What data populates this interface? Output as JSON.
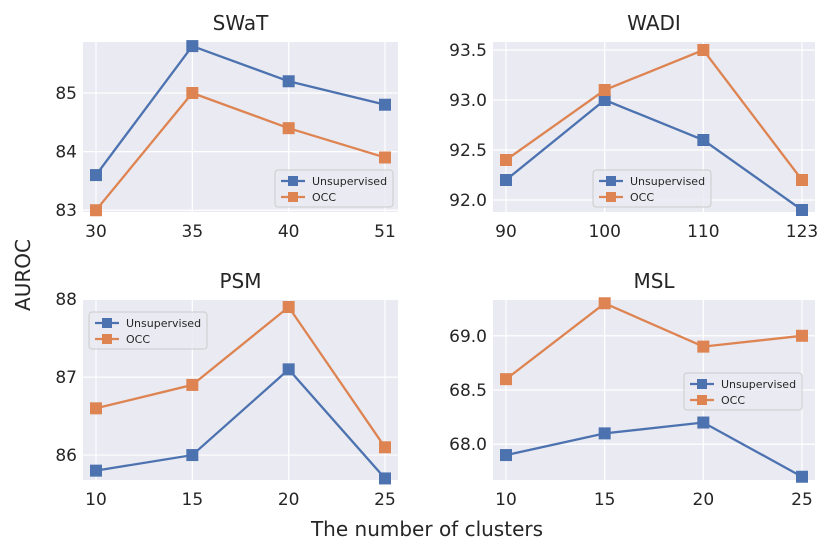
{
  "figure": {
    "ylabel": "AUROC",
    "xlabel": "The number of clusters",
    "colors": {
      "unsupervised": "#4c72b0",
      "occ": "#dd8452",
      "panel_bg": "#eaeaf2",
      "grid": "#ffffff"
    }
  },
  "chart_data": [
    {
      "type": "line",
      "title": "SWaT",
      "categories": [
        "30",
        "35",
        "40",
        "51"
      ],
      "series": [
        {
          "name": "Unsupervised",
          "values": [
            83.6,
            85.8,
            85.2,
            84.8
          ]
        },
        {
          "name": "OCC",
          "values": [
            83.0,
            85.0,
            84.4,
            83.9
          ]
        }
      ],
      "ylim": [
        82.97,
        85.87
      ],
      "yticks": [
        "83",
        "84",
        "85"
      ],
      "legend": "lower-right"
    },
    {
      "type": "line",
      "title": "WADI",
      "categories": [
        "90",
        "100",
        "110",
        "123"
      ],
      "series": [
        {
          "name": "Unsupervised",
          "values": [
            92.2,
            93.0,
            92.6,
            91.9
          ]
        },
        {
          "name": "OCC",
          "values": [
            92.4,
            93.1,
            93.5,
            92.2
          ]
        }
      ],
      "ylim": [
        91.88,
        93.58
      ],
      "yticks": [
        "92.0",
        "92.5",
        "93.0",
        "93.5"
      ],
      "legend": "lower-right"
    },
    {
      "type": "line",
      "title": "PSM",
      "categories": [
        "10",
        "15",
        "20",
        "25"
      ],
      "series": [
        {
          "name": "Unsupervised",
          "values": [
            85.8,
            86.0,
            87.1,
            85.7
          ]
        },
        {
          "name": "OCC",
          "values": [
            86.6,
            86.9,
            87.9,
            86.1
          ]
        }
      ],
      "ylim": [
        85.68,
        87.99
      ],
      "yticks": [
        "86",
        "87",
        "88"
      ],
      "legend": "upper-left"
    },
    {
      "type": "line",
      "title": "MSL",
      "categories": [
        "10",
        "15",
        "20",
        "25"
      ],
      "series": [
        {
          "name": "Unsupervised",
          "values": [
            67.9,
            68.1,
            68.2,
            67.7
          ]
        },
        {
          "name": "OCC",
          "values": [
            68.6,
            69.3,
            68.9,
            69.0
          ]
        }
      ],
      "ylim": [
        67.67,
        69.33
      ],
      "yticks": [
        "68.0",
        "68.5",
        "69.0"
      ],
      "legend": "center-right"
    }
  ]
}
